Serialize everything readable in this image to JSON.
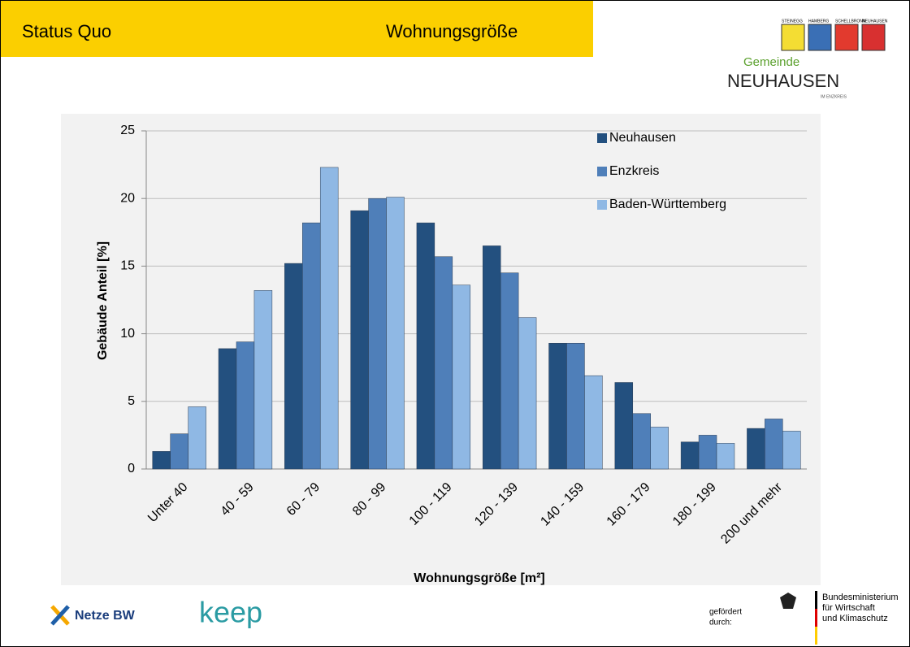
{
  "header": {
    "left": "Status Quo",
    "title": "Wohnungsgröße"
  },
  "logo": {
    "villages": [
      "STEINEGG",
      "HAMBERG",
      "SCHELLBRONN",
      "NEUHAUSEN"
    ],
    "line1": "Gemeinde",
    "line2": "NEUHAUSEN",
    "line3": "IM ENZKREIS"
  },
  "chart_data": {
    "type": "bar",
    "xlabel": "Wohnungsgröße [m²]",
    "ylabel": "Gebäude Anteil [%]",
    "categories": [
      "Unter 40",
      "40 - 59",
      "60 - 79",
      "80 - 99",
      "100 - 119",
      "120 - 139",
      "140 - 159",
      "160 - 179",
      "180 - 199",
      "200 und mehr"
    ],
    "series": [
      {
        "name": "Neuhausen",
        "color": "#23507f",
        "values": [
          1.3,
          8.9,
          15.2,
          19.1,
          18.2,
          16.5,
          9.3,
          6.4,
          2.0,
          3.0
        ]
      },
      {
        "name": "Enzkreis",
        "color": "#4f7fb9",
        "values": [
          2.6,
          9.4,
          18.2,
          20.0,
          15.7,
          14.5,
          9.3,
          4.1,
          2.5,
          3.7
        ]
      },
      {
        "name": "Baden-Württemberg",
        "color": "#8fb8e4",
        "values": [
          4.6,
          13.2,
          22.3,
          20.1,
          13.6,
          11.2,
          6.9,
          3.1,
          1.9,
          2.8
        ]
      }
    ],
    "ylim": [
      0,
      25
    ],
    "yticks": [
      0,
      5,
      10,
      15,
      20,
      25
    ],
    "grid": true,
    "legend": "top-right"
  },
  "footer": {
    "netze": "Netze BW",
    "keep": "keep",
    "funded": [
      "gefördert",
      "durch:"
    ],
    "ministry": [
      "Bundesministerium",
      "für Wirtschaft",
      "und Klimaschutz"
    ]
  }
}
